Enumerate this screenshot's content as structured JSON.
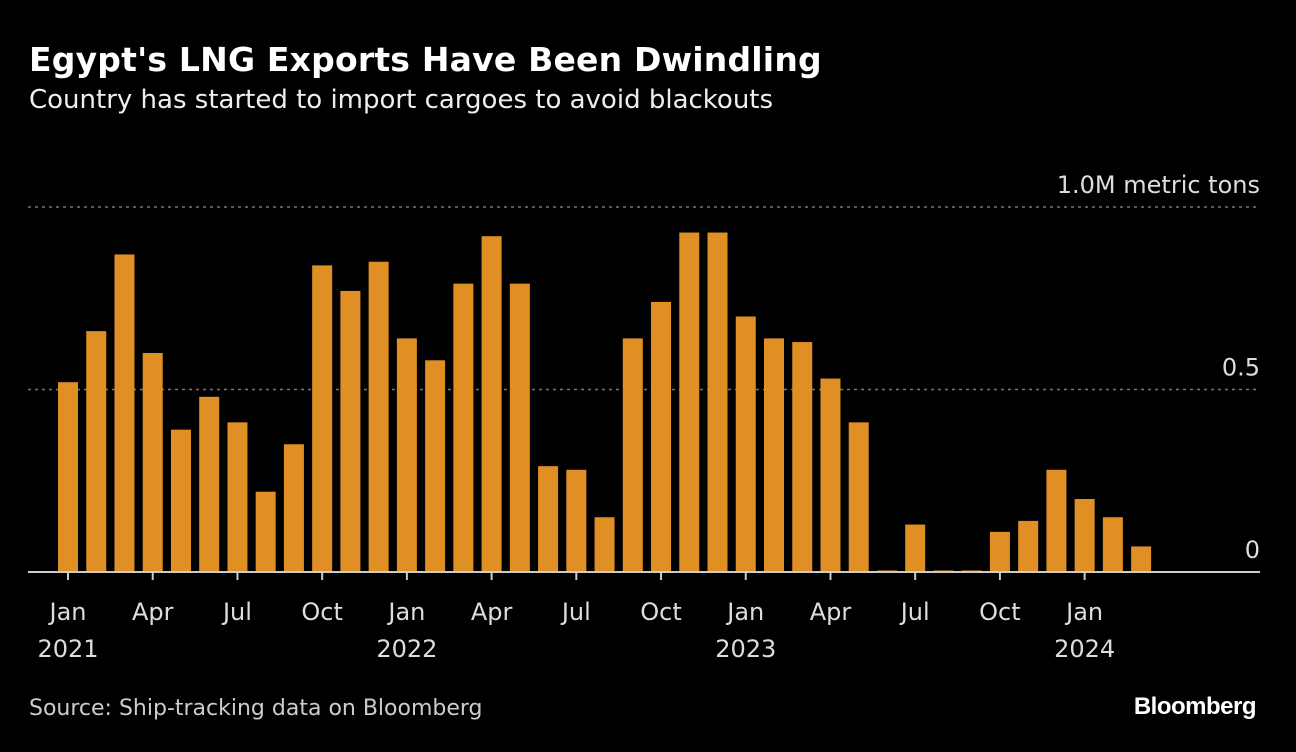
{
  "chart_data": {
    "type": "bar",
    "title": "Egypt's LNG Exports Have Been Dwindling",
    "subtitle": "Country has started to import cargoes to avoid blackouts",
    "ylabel": "1.0M metric tons",
    "ylim": [
      0,
      1.0
    ],
    "yticks": [
      {
        "value": 0,
        "label": "0"
      },
      {
        "value": 0.5,
        "label": "0.5"
      },
      {
        "value": 1.0,
        "label": "1.0M metric tons"
      }
    ],
    "grid": true,
    "color": "#E08F24",
    "categories": [
      "2021-01",
      "2021-02",
      "2021-03",
      "2021-04",
      "2021-05",
      "2021-06",
      "2021-07",
      "2021-08",
      "2021-09",
      "2021-10",
      "2021-11",
      "2021-12",
      "2022-01",
      "2022-02",
      "2022-03",
      "2022-04",
      "2022-05",
      "2022-06",
      "2022-07",
      "2022-08",
      "2022-09",
      "2022-10",
      "2022-11",
      "2022-12",
      "2023-01",
      "2023-02",
      "2023-03",
      "2023-04",
      "2023-05",
      "2023-06",
      "2023-07",
      "2023-08",
      "2023-09",
      "2023-10",
      "2023-11",
      "2023-12",
      "2024-01",
      "2024-02",
      "2024-03"
    ],
    "values": [
      0.52,
      0.66,
      0.87,
      0.6,
      0.39,
      0.48,
      0.41,
      0.22,
      0.35,
      0.84,
      0.77,
      0.85,
      0.64,
      0.58,
      0.79,
      0.92,
      0.79,
      0.29,
      0.28,
      0.15,
      0.64,
      0.74,
      0.93,
      0.93,
      0.7,
      0.64,
      0.63,
      0.53,
      0.41,
      0.003,
      0.13,
      0.003,
      0.003,
      0.11,
      0.14,
      0.28,
      0.2,
      0.15,
      0.07
    ],
    "xticks": [
      {
        "index": 0,
        "label": "Jan",
        "year": "2021"
      },
      {
        "index": 3,
        "label": "Apr"
      },
      {
        "index": 6,
        "label": "Jul"
      },
      {
        "index": 9,
        "label": "Oct"
      },
      {
        "index": 12,
        "label": "Jan",
        "year": "2022"
      },
      {
        "index": 15,
        "label": "Apr"
      },
      {
        "index": 18,
        "label": "Jul"
      },
      {
        "index": 21,
        "label": "Oct"
      },
      {
        "index": 24,
        "label": "Jan",
        "year": "2023"
      },
      {
        "index": 27,
        "label": "Apr"
      },
      {
        "index": 30,
        "label": "Jul"
      },
      {
        "index": 33,
        "label": "Oct"
      },
      {
        "index": 36,
        "label": "Jan",
        "year": "2024"
      }
    ]
  },
  "source": "Source: Ship-tracking data on Bloomberg",
  "logo": "Bloomberg"
}
